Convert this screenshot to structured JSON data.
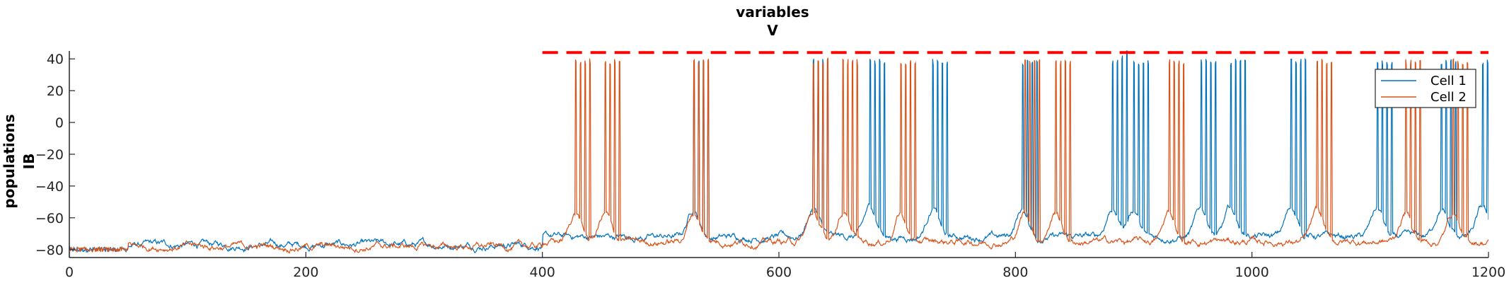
{
  "chart_data": {
    "type": "line",
    "title": [
      "variables",
      "V"
    ],
    "ylabel": [
      "populations",
      "IB"
    ],
    "xlabel": "",
    "xlim": [
      0,
      1200
    ],
    "ylim": [
      -85,
      45
    ],
    "xticks": [
      0,
      200,
      400,
      600,
      800,
      1000,
      1200
    ],
    "yticks": [
      -80,
      -60,
      -40,
      -20,
      0,
      20,
      40
    ],
    "xtick_labels": [
      "0",
      "200",
      "400",
      "600",
      "800",
      "1000",
      "1200"
    ],
    "ytick_labels": [
      "−80",
      "−60",
      "−40",
      "−20",
      "0",
      "20",
      "40"
    ],
    "grid": false,
    "legend_position": "top-right",
    "colors": {
      "cell1": "#0072BD",
      "cell2": "#D95319",
      "threshold": "#FF0000"
    },
    "threshold_line": {
      "y": 44,
      "x_start": 400,
      "x_end": 1200,
      "style": "dashed"
    },
    "series": [
      {
        "name": "Cell 1",
        "color": "#0072BD",
        "baseline_windows": [
          [
            0,
            400,
            -77
          ],
          [
            400,
            1200,
            -72
          ]
        ],
        "burst_times": [
          528,
          629,
          677,
          730,
          806,
          882,
          900,
          957,
          982,
          1033,
          1106,
          1160,
          1195
        ],
        "spikes_per_burst": 4,
        "peak": 40
      },
      {
        "name": "Cell 2",
        "color": "#D95319",
        "baseline_windows": [
          [
            0,
            400,
            -78
          ],
          [
            400,
            1200,
            -75
          ]
        ],
        "burst_times": [
          428,
          453,
          528,
          629,
          654,
          703,
          808,
          834,
          930,
          1055,
          1130,
          1170
        ],
        "spikes_per_burst": 4,
        "peak": 40
      }
    ]
  }
}
